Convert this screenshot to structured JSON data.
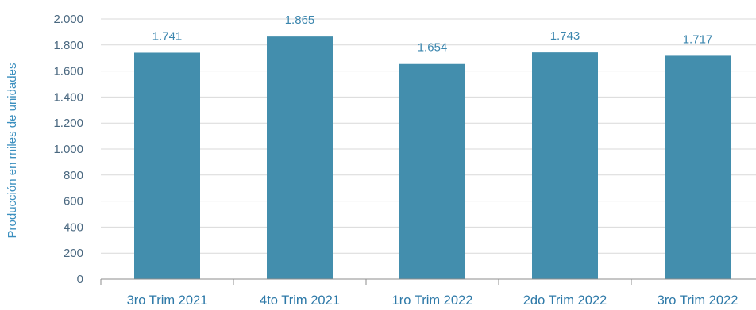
{
  "chart_data": {
    "type": "bar",
    "title": "",
    "xlabel": "",
    "ylabel": "Producción en miles de unidades",
    "categories": [
      "3ro Trim 2021",
      "4to Trim 2021",
      "1ro Trim 2022",
      "2do Trim 2022",
      "3ro Trim 2022"
    ],
    "values": [
      1741,
      1865,
      1654,
      1743,
      1717
    ],
    "value_labels": [
      "1.741",
      "1.865",
      "1.654",
      "1.743",
      "1.717"
    ],
    "ylim": [
      0,
      2000
    ],
    "yticks": [
      0,
      200,
      400,
      600,
      800,
      1000,
      1200,
      1400,
      1600,
      1800,
      2000
    ],
    "ytick_labels": [
      "0",
      "200",
      "400",
      "600",
      "800",
      "1.000",
      "1.200",
      "1.400",
      "1.600",
      "1.800",
      "2.000"
    ],
    "grid": true,
    "legend": "none",
    "colors": {
      "bar": "#438ead",
      "grid": "#d9d9d9",
      "axis": "#8c8c8c"
    }
  }
}
